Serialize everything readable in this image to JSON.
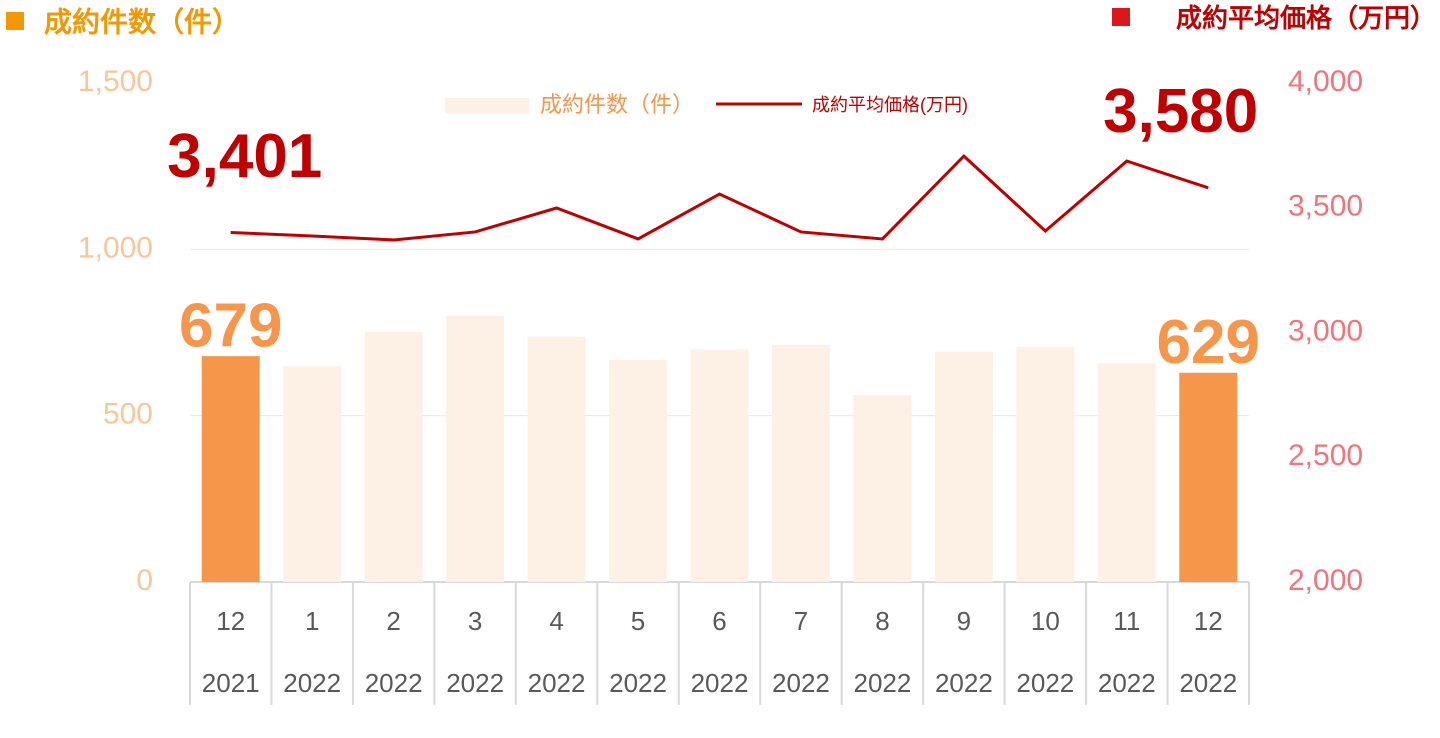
{
  "chart_data": {
    "type": "bar-line",
    "y_title": "成約件数（件）",
    "y2_title": "成約平均価格（万円）",
    "categories": [
      "12",
      "1",
      "2",
      "3",
      "4",
      "5",
      "6",
      "7",
      "8",
      "9",
      "10",
      "11",
      "12"
    ],
    "years": [
      "2021",
      "2022",
      "2022",
      "2022",
      "2022",
      "2022",
      "2022",
      "2022",
      "2022",
      "2022",
      "2022",
      "2022",
      "2022"
    ],
    "series": [
      {
        "name": "成約件数（件）",
        "type": "bar",
        "color": "#fdf1e6",
        "colors": [
          "#f5964a",
          "#fdf1e6",
          "#fdf1e6",
          "#fdf1e6",
          "#fdf1e6",
          "#fdf1e6",
          "#fdf1e6",
          "#fdf1e6",
          "#fdf1e6",
          "#fdf1e6",
          "#fdf1e6",
          "#fdf1e6",
          "#f5964a"
        ],
        "values": [
          679,
          649,
          752,
          800,
          737,
          667,
          698,
          713,
          562,
          692,
          707,
          658,
          629
        ],
        "value_labels": [
          "679",
          null,
          null,
          null,
          null,
          null,
          null,
          null,
          null,
          null,
          null,
          null,
          "629"
        ]
      },
      {
        "name": "成約平均価格(万円)",
        "type": "line",
        "axis": "y2",
        "color": "#c00000",
        "values": [
          3401,
          3387,
          3371,
          3403,
          3499,
          3375,
          3555,
          3403,
          3375,
          3707,
          3407,
          3687,
          3580
        ],
        "value_labels": [
          "3,401",
          null,
          null,
          null,
          null,
          null,
          null,
          null,
          null,
          null,
          null,
          null,
          "3,580"
        ]
      }
    ],
    "ylim": [
      0,
      1500
    ],
    "yticks": [
      0,
      500,
      {
        "value": 1000,
        "label": "1,000"
      },
      {
        "value": 1500,
        "label": "1,500"
      }
    ],
    "y2lim": [
      2000,
      4000
    ],
    "y2ticks": [
      {
        "value": 2000,
        "label": "2,000"
      },
      {
        "value": 2500,
        "label": "2,500"
      },
      {
        "value": 3000,
        "label": "3,000"
      },
      {
        "value": 3500,
        "label": "3,500"
      },
      {
        "value": 4000,
        "label": "4,000"
      }
    ],
    "grid": true,
    "legend": "top"
  }
}
